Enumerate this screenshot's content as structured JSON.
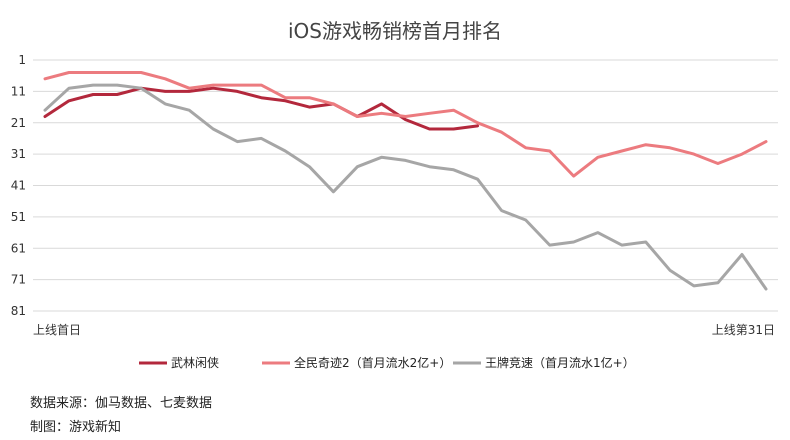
{
  "chart_data": {
    "type": "line",
    "title": "iOS游戏畅销榜首月排名",
    "xlabel": "",
    "ylabel": "",
    "x_start_label": "上线首日",
    "x_end_label": "上线第31日",
    "x_range": [
      1,
      31
    ],
    "y_ticks": [
      1,
      11,
      21,
      31,
      41,
      51,
      61,
      71,
      81
    ],
    "ylim": [
      1,
      81
    ],
    "y_inverted": true,
    "grid": true,
    "legend_position": "bottom",
    "series": [
      {
        "name": "武林闲侠",
        "color": "#b3283c",
        "values": [
          19,
          14,
          12,
          12,
          10,
          11,
          11,
          10,
          11,
          13,
          14,
          16,
          15,
          19,
          15,
          20,
          23,
          23,
          22
        ]
      },
      {
        "name": "全民奇迹2（首月流水2亿+）",
        "color": "#ec7b7f",
        "values": [
          7,
          5,
          5,
          5,
          5,
          7,
          10,
          9,
          9,
          9,
          13,
          13,
          15,
          19,
          18,
          19,
          18,
          17,
          21,
          24,
          29,
          30,
          38,
          32,
          30,
          28,
          29,
          31,
          34,
          31,
          27
        ]
      },
      {
        "name": "王牌竞速（首月流水1亿+）",
        "color": "#a6a6a6",
        "values": [
          17,
          10,
          9,
          9,
          10,
          15,
          17,
          23,
          27,
          26,
          30,
          35,
          43,
          35,
          32,
          33,
          35,
          36,
          39,
          49,
          52,
          60,
          59,
          56,
          60,
          59,
          68,
          73,
          72,
          63,
          74
        ]
      }
    ]
  },
  "footer": {
    "source": "数据来源：伽马数据、七麦数据",
    "credit": "制图：游戏新知"
  }
}
